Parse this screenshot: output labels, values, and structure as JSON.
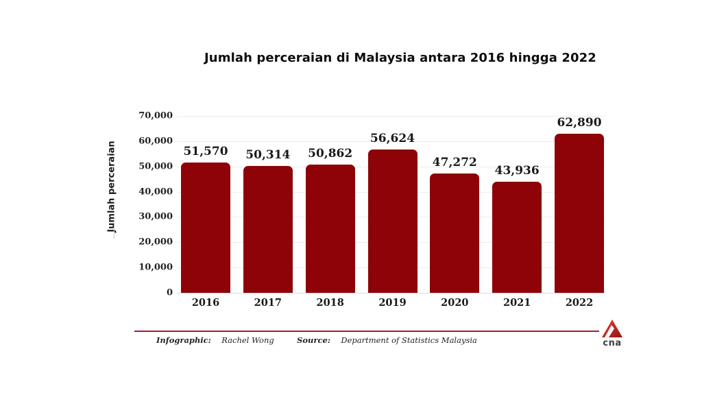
{
  "chart": {
    "title": "Jumlah perceraian di Malaysia antara 2016 hingga 2022",
    "ylabel": "Jumlah perceraian"
  },
  "chart_data": {
    "type": "bar",
    "title": "Jumlah perceraian di Malaysia antara 2016 hingga 2022",
    "xlabel": "",
    "ylabel": "Jumlah perceraian",
    "categories": [
      "2016",
      "2017",
      "2018",
      "2019",
      "2020",
      "2021",
      "2022"
    ],
    "values": [
      51570,
      50314,
      50862,
      56624,
      47272,
      43936,
      62890
    ],
    "value_labels": [
      "51,570",
      "50,314",
      "50,862",
      "56,624",
      "47,272",
      "43,936",
      "62,890"
    ],
    "ylim": [
      0,
      70000
    ],
    "yticks": [
      0,
      10000,
      20000,
      30000,
      40000,
      50000,
      60000,
      70000
    ],
    "ytick_labels": [
      "0",
      "10,000",
      "20,000",
      "30,000",
      "40,000",
      "50,000",
      "60,000",
      "70,000"
    ],
    "grid": true,
    "legend": "none",
    "bar_color": "#8d0307"
  },
  "footer": {
    "infographic_label": "Infographic:",
    "infographic_value": "Rachel Wong",
    "source_label": "Source:",
    "source_value": "Department of Statistics Malaysia",
    "line_color": "#a51c30"
  },
  "logo": {
    "wordmark": "cna",
    "red_top": "#ef3e33",
    "red_bottom": "#8f1713",
    "wordmark_color": "#3d3d3d"
  }
}
